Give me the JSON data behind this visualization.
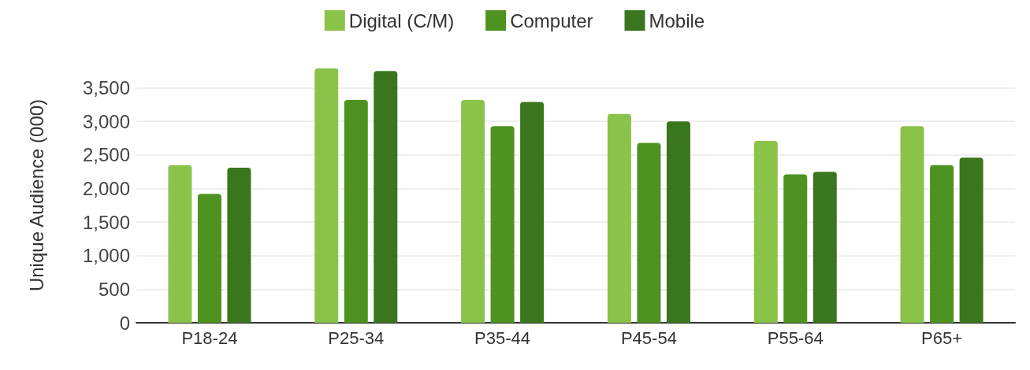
{
  "chart_data": {
    "type": "bar",
    "ylabel": "Unique Audience (000)",
    "categories": [
      "P18-24",
      "P25-34",
      "P35-44",
      "P45-54",
      "P55-64",
      "P65+"
    ],
    "series": [
      {
        "name": "Digital (C/M)",
        "color": "#8bc34a",
        "values": [
          2350,
          3790,
          3320,
          3110,
          2710,
          2930
        ]
      },
      {
        "name": "Computer",
        "color": "#4e9320",
        "values": [
          1920,
          3320,
          2930,
          2680,
          2210,
          2350
        ]
      },
      {
        "name": "Mobile",
        "color": "#3a761d",
        "values": [
          2310,
          3750,
          3290,
          3000,
          2250,
          2460
        ]
      }
    ],
    "ylim": [
      0,
      3800
    ],
    "yticks": [
      0,
      500,
      {
        "value": 1000,
        "label": "1,000"
      },
      {
        "value": 1500,
        "label": "1,500"
      },
      {
        "value": 2000,
        "label": "2,000"
      },
      {
        "value": 2500,
        "label": "2,500"
      },
      {
        "value": 3000,
        "label": "3,000"
      },
      {
        "value": 3500,
        "label": "3,500"
      }
    ],
    "grid": "y",
    "legend": "top"
  }
}
